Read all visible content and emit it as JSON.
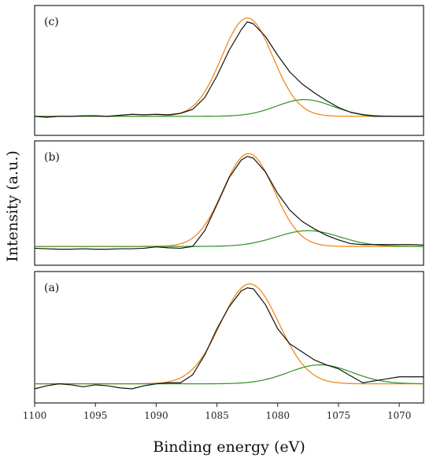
{
  "chart_data": {
    "type": "line",
    "xlabel": "Binding energy (eV)",
    "ylabel": "Intensity (a.u.)",
    "xlim": [
      1100,
      1068
    ],
    "x_reversed": true,
    "x_ticks": [
      1100,
      1095,
      1090,
      1085,
      1080,
      1075,
      1070
    ],
    "colors": {
      "measured": "#111111",
      "main_fit": "#f28a1e",
      "shoulder_fit": "#3a9a2e"
    },
    "panels": [
      {
        "label": "(c)",
        "baseline": 0.05,
        "peaks": [
          {
            "center": 1082.5,
            "sigma": 2.1,
            "height": 1.0
          },
          {
            "center": 1077.8,
            "sigma": 2.3,
            "height": 0.17
          }
        ],
        "measured": [
          [
            1100,
            0.05
          ],
          [
            1099,
            0.04
          ],
          [
            1098,
            0.05
          ],
          [
            1097,
            0.05
          ],
          [
            1096,
            0.055
          ],
          [
            1095,
            0.055
          ],
          [
            1094,
            0.05
          ],
          [
            1093,
            0.06
          ],
          [
            1092,
            0.07
          ],
          [
            1091,
            0.065
          ],
          [
            1090,
            0.07
          ],
          [
            1089,
            0.065
          ],
          [
            1088,
            0.08
          ],
          [
            1087,
            0.12
          ],
          [
            1086,
            0.24
          ],
          [
            1085,
            0.46
          ],
          [
            1084,
            0.72
          ],
          [
            1083,
            0.93
          ],
          [
            1082.5,
            1.01
          ],
          [
            1082,
            0.99
          ],
          [
            1081,
            0.86
          ],
          [
            1080,
            0.67
          ],
          [
            1079,
            0.5
          ],
          [
            1078,
            0.38
          ],
          [
            1077,
            0.29
          ],
          [
            1076,
            0.21
          ],
          [
            1075,
            0.14
          ],
          [
            1074,
            0.09
          ],
          [
            1073,
            0.065
          ],
          [
            1072,
            0.05
          ],
          [
            1071,
            0.05
          ],
          [
            1070,
            0.05
          ],
          [
            1069,
            0.05
          ],
          [
            1068,
            0.05
          ]
        ]
      },
      {
        "label": "(b)",
        "baseline": 0.05,
        "peaks": [
          {
            "center": 1082.4,
            "sigma": 2.1,
            "height": 1.0
          },
          {
            "center": 1077.5,
            "sigma": 2.6,
            "height": 0.17
          }
        ],
        "measured": [
          [
            1100,
            0.03
          ],
          [
            1099,
            0.025
          ],
          [
            1098,
            0.02
          ],
          [
            1097,
            0.02
          ],
          [
            1096,
            0.025
          ],
          [
            1095,
            0.02
          ],
          [
            1094,
            0.02
          ],
          [
            1093,
            0.025
          ],
          [
            1092,
            0.025
          ],
          [
            1091,
            0.03
          ],
          [
            1090,
            0.045
          ],
          [
            1089,
            0.035
          ],
          [
            1088,
            0.03
          ],
          [
            1087,
            0.05
          ],
          [
            1086,
            0.22
          ],
          [
            1085,
            0.5
          ],
          [
            1084,
            0.79
          ],
          [
            1083,
            0.98
          ],
          [
            1082.5,
            1.02
          ],
          [
            1082,
            1.0
          ],
          [
            1081,
            0.85
          ],
          [
            1080,
            0.62
          ],
          [
            1079,
            0.44
          ],
          [
            1078,
            0.32
          ],
          [
            1077,
            0.24
          ],
          [
            1076,
            0.17
          ],
          [
            1075,
            0.12
          ],
          [
            1074,
            0.08
          ],
          [
            1073,
            0.07
          ],
          [
            1072,
            0.07
          ],
          [
            1071,
            0.07
          ],
          [
            1070,
            0.07
          ],
          [
            1069,
            0.07
          ],
          [
            1068,
            0.065
          ]
        ]
      },
      {
        "label": "(a)",
        "baseline": 0.05,
        "peaks": [
          {
            "center": 1082.3,
            "sigma": 2.4,
            "height": 1.0
          },
          {
            "center": 1076.5,
            "sigma": 2.6,
            "height": 0.19
          }
        ],
        "measured": [
          [
            1100,
            0.0
          ],
          [
            1099,
            0.03
          ],
          [
            1098,
            0.05
          ],
          [
            1097,
            0.04
          ],
          [
            1096,
            0.02
          ],
          [
            1095,
            0.04
          ],
          [
            1094,
            0.03
          ],
          [
            1093,
            0.01
          ],
          [
            1092,
            0.0
          ],
          [
            1091,
            0.03
          ],
          [
            1090,
            0.05
          ],
          [
            1089,
            0.06
          ],
          [
            1088,
            0.06
          ],
          [
            1087,
            0.14
          ],
          [
            1086,
            0.34
          ],
          [
            1085,
            0.6
          ],
          [
            1084,
            0.82
          ],
          [
            1083,
            0.98
          ],
          [
            1082.5,
            1.01
          ],
          [
            1082,
            1.0
          ],
          [
            1081,
            0.84
          ],
          [
            1080,
            0.6
          ],
          [
            1079,
            0.45
          ],
          [
            1078,
            0.37
          ],
          [
            1077,
            0.29
          ],
          [
            1076,
            0.24
          ],
          [
            1075,
            0.2
          ],
          [
            1074,
            0.13
          ],
          [
            1073,
            0.06
          ],
          [
            1072,
            0.08
          ],
          [
            1071,
            0.1
          ],
          [
            1070,
            0.12
          ],
          [
            1069,
            0.12
          ],
          [
            1068,
            0.12
          ]
        ]
      }
    ]
  }
}
